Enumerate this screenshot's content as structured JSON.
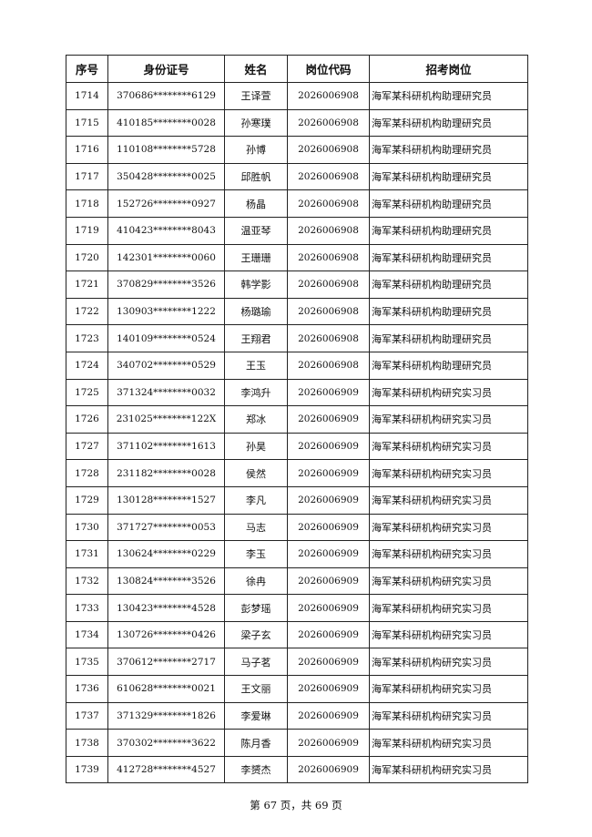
{
  "table": {
    "headers": [
      "序号",
      "身份证号",
      "姓名",
      "岗位代码",
      "招考岗位"
    ],
    "rows": [
      [
        "1714",
        "370686********6129",
        "王译萱",
        "2026006908",
        "海军某科研机构助理研究员"
      ],
      [
        "1715",
        "410185********0028",
        "孙寒璞",
        "2026006908",
        "海军某科研机构助理研究员"
      ],
      [
        "1716",
        "110108********5728",
        "孙博",
        "2026006908",
        "海军某科研机构助理研究员"
      ],
      [
        "1717",
        "350428********0025",
        "邱胜帆",
        "2026006908",
        "海军某科研机构助理研究员"
      ],
      [
        "1718",
        "152726********0927",
        "杨晶",
        "2026006908",
        "海军某科研机构助理研究员"
      ],
      [
        "1719",
        "410423********8043",
        "温亚琴",
        "2026006908",
        "海军某科研机构助理研究员"
      ],
      [
        "1720",
        "142301********0060",
        "王珊珊",
        "2026006908",
        "海军某科研机构助理研究员"
      ],
      [
        "1721",
        "370829********3526",
        "韩学影",
        "2026006908",
        "海军某科研机构助理研究员"
      ],
      [
        "1722",
        "130903********1222",
        "杨璐瑜",
        "2026006908",
        "海军某科研机构助理研究员"
      ],
      [
        "1723",
        "140109********0524",
        "王翔君",
        "2026006908",
        "海军某科研机构助理研究员"
      ],
      [
        "1724",
        "340702********0529",
        "王玉",
        "2026006908",
        "海军某科研机构助理研究员"
      ],
      [
        "1725",
        "371324********0032",
        "李鸿升",
        "2026006909",
        "海军某科研机构研究实习员"
      ],
      [
        "1726",
        "231025********122X",
        "郑冰",
        "2026006909",
        "海军某科研机构研究实习员"
      ],
      [
        "1727",
        "371102********1613",
        "孙昊",
        "2026006909",
        "海军某科研机构研究实习员"
      ],
      [
        "1728",
        "231182********0028",
        "侯然",
        "2026006909",
        "海军某科研机构研究实习员"
      ],
      [
        "1729",
        "130128********1527",
        "李凡",
        "2026006909",
        "海军某科研机构研究实习员"
      ],
      [
        "1730",
        "371727********0053",
        "马志",
        "2026006909",
        "海军某科研机构研究实习员"
      ],
      [
        "1731",
        "130624********0229",
        "李玉",
        "2026006909",
        "海军某科研机构研究实习员"
      ],
      [
        "1732",
        "130824********3526",
        "徐冉",
        "2026006909",
        "海军某科研机构研究实习员"
      ],
      [
        "1733",
        "130423********4528",
        "彭梦瑶",
        "2026006909",
        "海军某科研机构研究实习员"
      ],
      [
        "1734",
        "130726********0426",
        "梁子玄",
        "2026006909",
        "海军某科研机构研究实习员"
      ],
      [
        "1735",
        "370612********2717",
        "马子茗",
        "2026006909",
        "海军某科研机构研究实习员"
      ],
      [
        "1736",
        "610628********0021",
        "王文丽",
        "2026006909",
        "海军某科研机构研究实习员"
      ],
      [
        "1737",
        "371329********1826",
        "李爱琳",
        "2026006909",
        "海军某科研机构研究实习员"
      ],
      [
        "1738",
        "370302********3622",
        "陈月香",
        "2026006909",
        "海军某科研机构研究实习员"
      ],
      [
        "1739",
        "412728********4527",
        "李赟杰",
        "2026006909",
        "海军某科研机构研究实习员"
      ]
    ]
  },
  "footer": {
    "page_text": "第 67 页，共 69 页"
  }
}
